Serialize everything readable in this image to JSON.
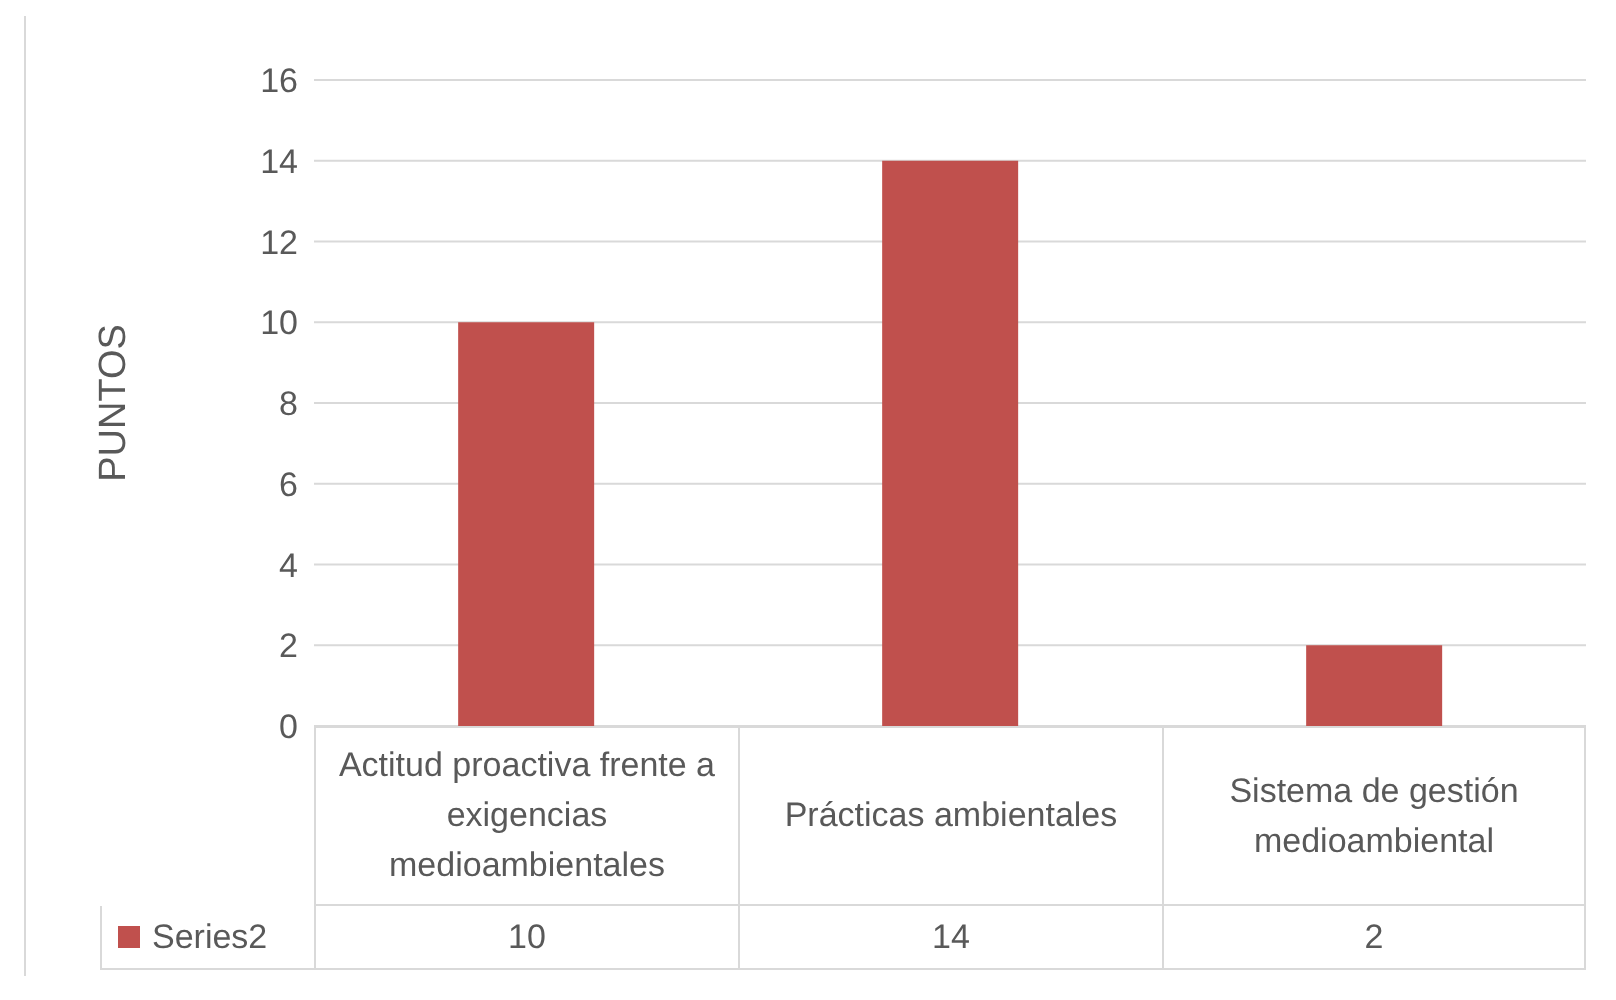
{
  "chart_data": {
    "type": "bar",
    "ylabel": "PUNTOS",
    "categories": [
      "Actitud proactiva frente a exigencias medioambientales",
      "Prácticas ambientales",
      "Sistema de gestión medioambiental"
    ],
    "series": [
      {
        "name": "Series2",
        "color": "#c0504d",
        "values": [
          10,
          14,
          2
        ]
      }
    ],
    "ylim": [
      0,
      16
    ],
    "yticks": [
      0,
      2,
      4,
      6,
      8,
      10,
      12,
      14,
      16
    ],
    "grid": "y",
    "data_labels": true
  }
}
